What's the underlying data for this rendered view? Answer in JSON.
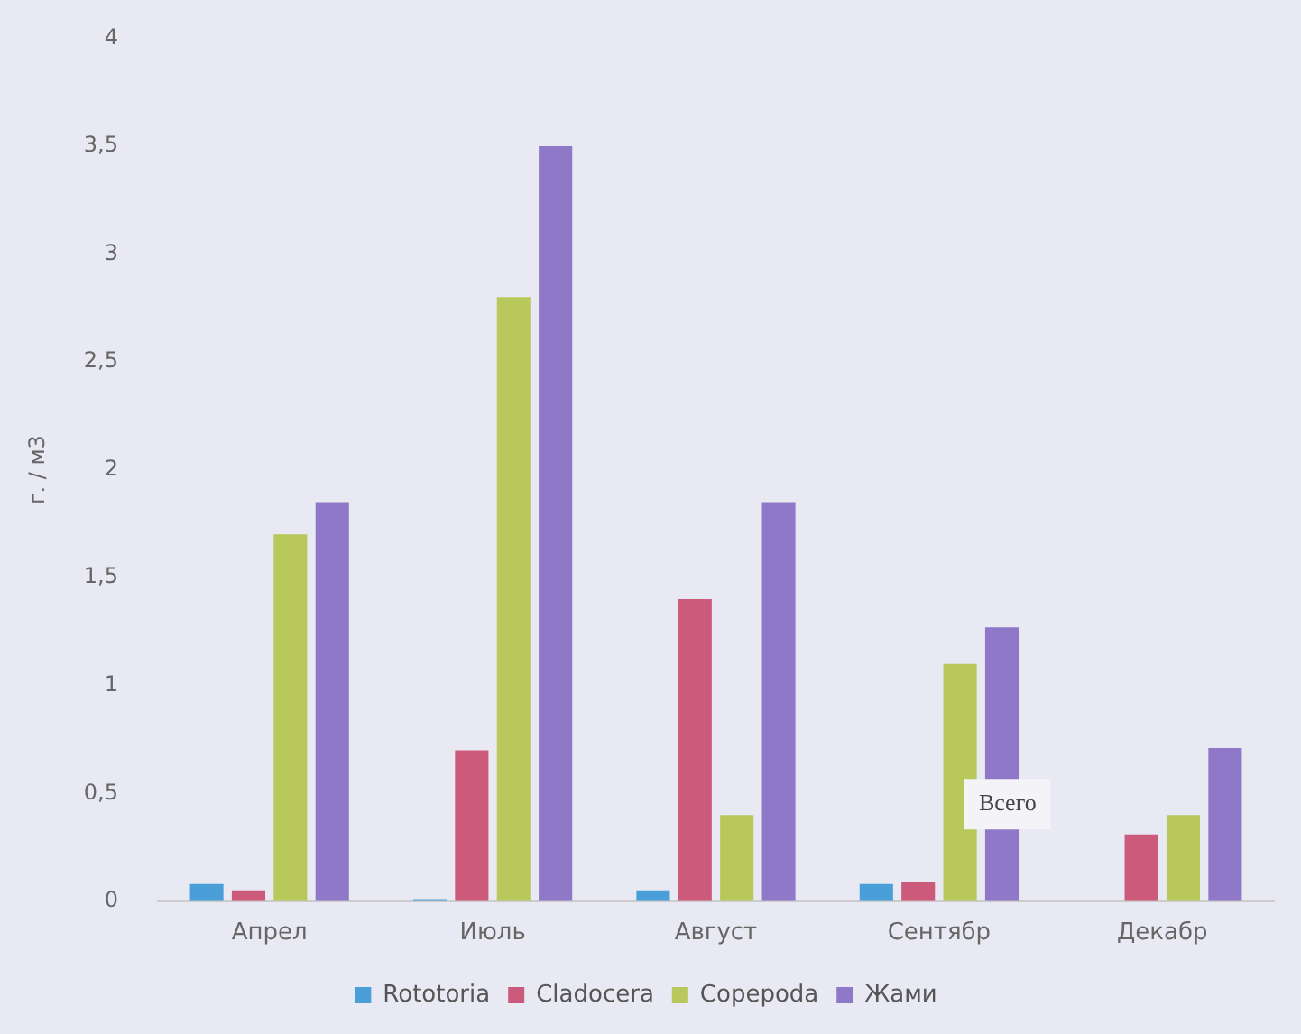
{
  "chart_data": {
    "type": "bar",
    "ylabel": "г. / м3",
    "categories": [
      "Апрел",
      "Июль",
      "Август",
      "Сентябр",
      "Декабр"
    ],
    "series": [
      {
        "name": "Rototoria",
        "color": "#4a9fd8",
        "values": [
          0.08,
          0.01,
          0.05,
          0.08,
          0
        ]
      },
      {
        "name": "Cladocera",
        "color": "#cc5a7a",
        "values": [
          0.05,
          0.7,
          1.4,
          0.09,
          0.31
        ]
      },
      {
        "name": "Copepoda",
        "color": "#b8c85a",
        "values": [
          1.7,
          2.8,
          0.4,
          1.1,
          0.4
        ]
      },
      {
        "name": "Жами",
        "color": "#9078c8",
        "values": [
          1.85,
          3.5,
          1.85,
          1.27,
          0.71
        ]
      }
    ],
    "ylim": [
      0,
      4
    ],
    "yticks": [
      0,
      {
        "value": 0.5,
        "label": "0,5"
      },
      1,
      {
        "value": 1.5,
        "label": "1,5"
      },
      2,
      {
        "value": 2.5,
        "label": "2,5"
      },
      3,
      {
        "value": 3.5,
        "label": "3,5"
      },
      4
    ],
    "grid": false,
    "legend": "bottom",
    "annotations": [
      {
        "text": "Всего",
        "x": "Сентябр",
        "y": 0.45
      }
    ]
  }
}
